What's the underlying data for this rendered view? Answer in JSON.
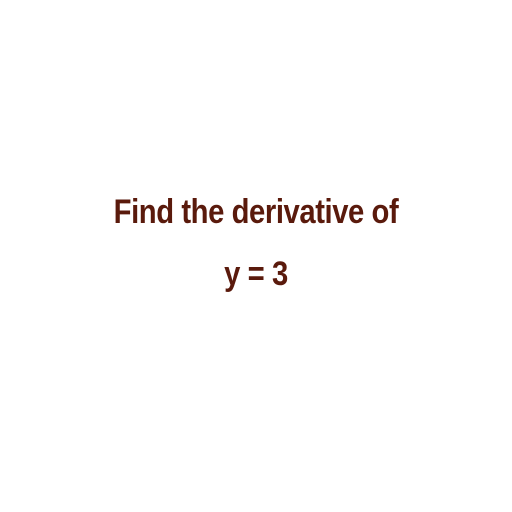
{
  "question": {
    "line1": "Find the derivative of",
    "line2": "y = 3"
  },
  "colors": {
    "background": "#ffffff",
    "text": "#5a1a0c"
  }
}
